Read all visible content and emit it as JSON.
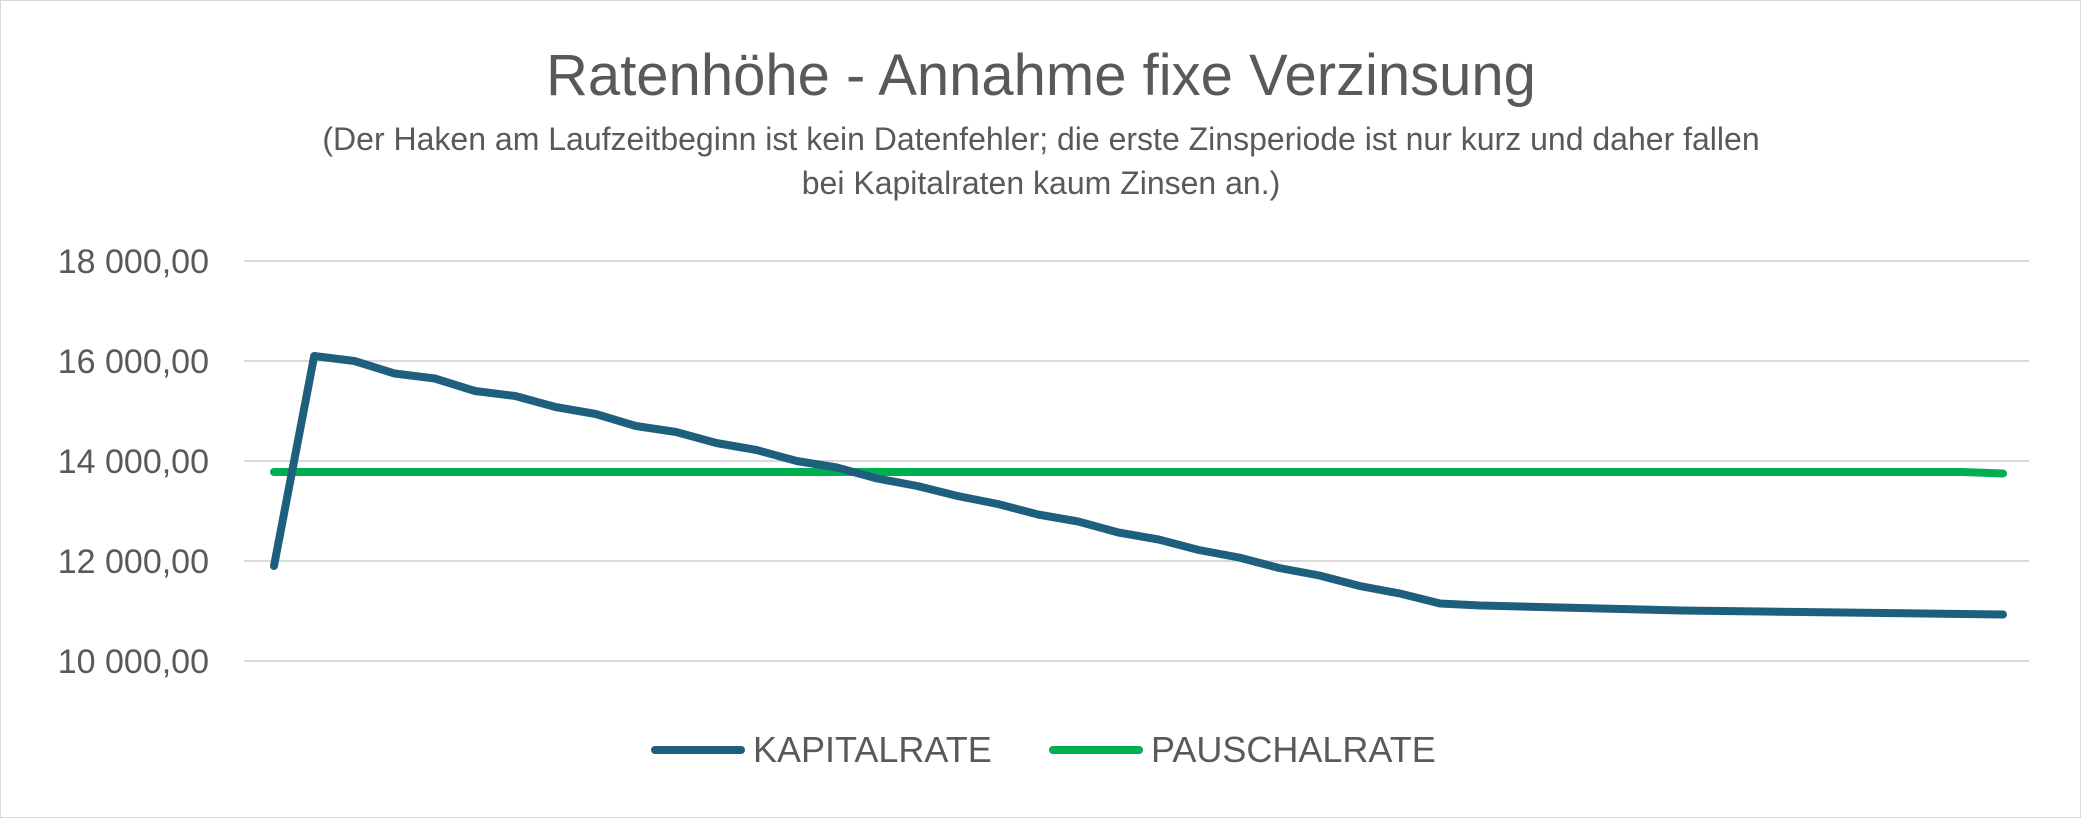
{
  "chart_data": {
    "type": "line",
    "title": "Ratenhöhe - Annahme fixe Verzinsung",
    "subtitle_lines": [
      "(Der Haken am Laufzeitbeginn ist kein Datenfehler; die erste Zinsperiode ist nur kurz und daher fallen",
      "bei Kapitalraten kaum Zinsen an.)"
    ],
    "y_ticks": [
      {
        "value": 10000,
        "label": "10 000,00"
      },
      {
        "value": 12000,
        "label": "12 000,00"
      },
      {
        "value": 14000,
        "label": "14 000,00"
      },
      {
        "value": 16000,
        "label": "16 000,00"
      },
      {
        "value": 18000,
        "label": "18 000,00"
      }
    ],
    "ylim": [
      10000,
      18000
    ],
    "grid": true,
    "legend_position": "bottom",
    "x": [
      1,
      2,
      3,
      4,
      5,
      6,
      7,
      8,
      9,
      10,
      11,
      12,
      13,
      14,
      15,
      16,
      17,
      18,
      19,
      20,
      21,
      22,
      23,
      24,
      25,
      26,
      27,
      28,
      29,
      30,
      31,
      32,
      33,
      34,
      35,
      36,
      37,
      38,
      39,
      40,
      41,
      42,
      43,
      44
    ],
    "series": [
      {
        "name": "KAPITALRATE",
        "color": "#1f5f7e",
        "values": [
          11900,
          16100,
          16000,
          15750,
          15650,
          15400,
          15300,
          15080,
          14940,
          14700,
          14580,
          14360,
          14220,
          14000,
          13870,
          13650,
          13500,
          13300,
          13140,
          12930,
          12790,
          12570,
          12430,
          12220,
          12070,
          11860,
          11710,
          11500,
          11350,
          11150,
          11110,
          11090,
          11070,
          11050,
          11030,
          11010,
          11000,
          10990,
          10980,
          10970,
          10960,
          10950,
          10940,
          10930
        ]
      },
      {
        "name": "PAUSCHALRATE",
        "color": "#00b050",
        "values": [
          13780,
          13780,
          13780,
          13780,
          13780,
          13780,
          13780,
          13780,
          13780,
          13780,
          13780,
          13780,
          13780,
          13780,
          13780,
          13780,
          13780,
          13780,
          13780,
          13780,
          13780,
          13780,
          13780,
          13780,
          13780,
          13780,
          13780,
          13780,
          13780,
          13780,
          13780,
          13780,
          13780,
          13780,
          13780,
          13780,
          13780,
          13780,
          13780,
          13780,
          13780,
          13780,
          13780,
          13750
        ]
      }
    ]
  }
}
